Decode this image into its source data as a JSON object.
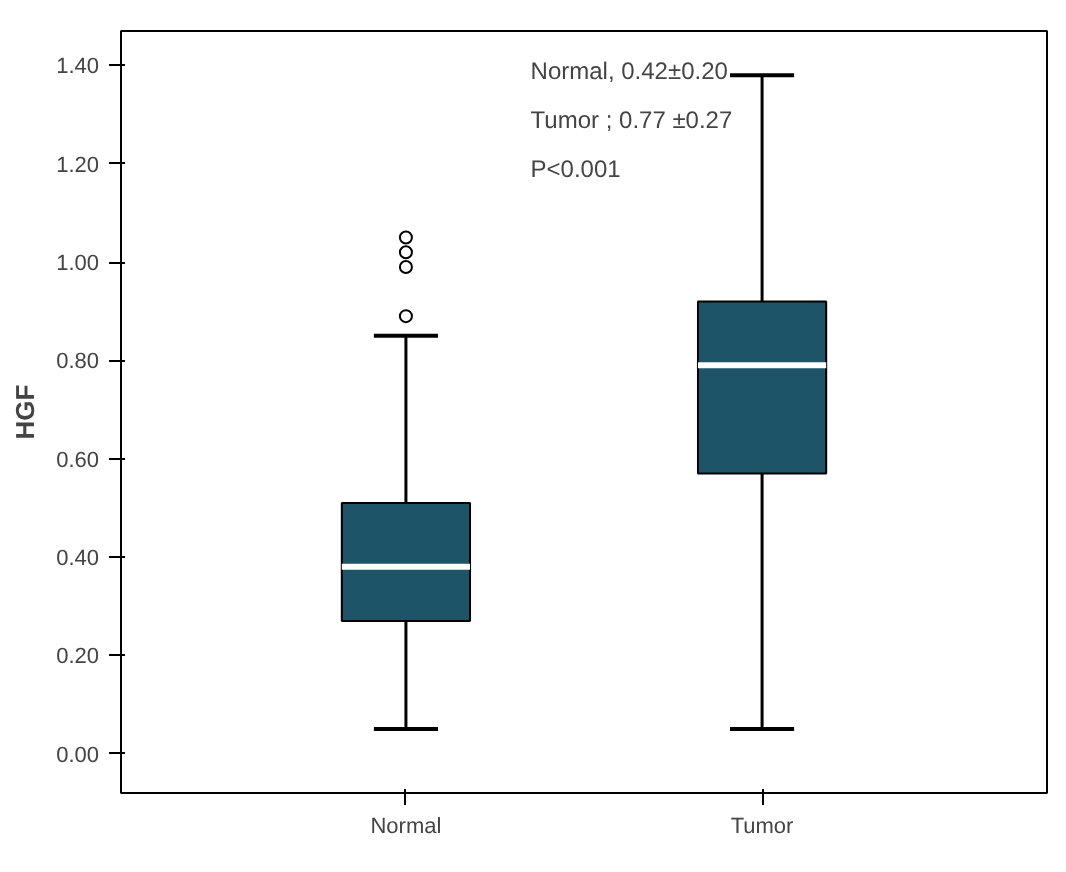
{
  "chart_data": {
    "type": "box",
    "ylabel": "HGF",
    "categories": [
      "Normal",
      "Tumor"
    ],
    "color": "#1d5468",
    "boxes": [
      {
        "low": 0.05,
        "q1": 0.27,
        "median": 0.38,
        "q3": 0.51,
        "high": 0.85,
        "outliers": [
          0.89,
          0.99,
          1.02,
          1.05
        ]
      },
      {
        "low": 0.05,
        "q1": 0.57,
        "median": 0.79,
        "q3": 0.92,
        "high": 1.38
      }
    ],
    "ylim": [
      -0.08,
      1.47
    ],
    "yticks": [
      {
        "value": 0.0,
        "label": "0.00"
      },
      {
        "value": 0.2,
        "label": "0.20"
      },
      {
        "value": 0.4,
        "label": "0.40"
      },
      {
        "value": 0.6,
        "label": "0.60"
      },
      {
        "value": 0.8,
        "label": "0.80"
      },
      {
        "value": 1.0,
        "label": "1.00"
      },
      {
        "value": 1.2,
        "label": "1.20"
      },
      {
        "value": 1.4,
        "label": "1.40"
      }
    ],
    "annotations": [
      "Normal, 0.42±0.20",
      "Tumor ; 0.77 ±0.27",
      "P<0.001"
    ],
    "grid": false,
    "marker": "circle"
  }
}
